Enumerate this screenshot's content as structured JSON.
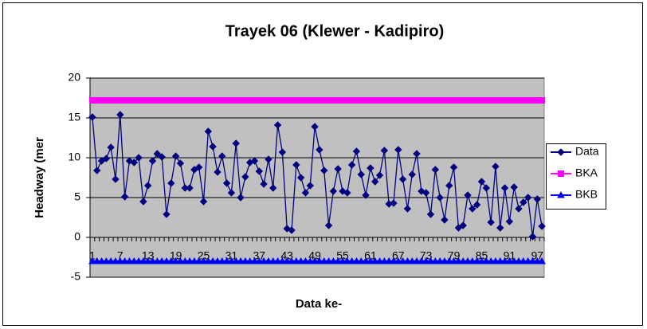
{
  "chart_data": {
    "type": "line",
    "title": "Trayek 06 (Klewer - Kadipiro)",
    "x_label": "Data ke-",
    "y_label": "Headway (mer",
    "categories": [
      "1",
      null,
      null,
      null,
      null,
      null,
      "7",
      null,
      null,
      null,
      null,
      null,
      "13",
      null,
      null,
      null,
      null,
      null,
      "19",
      null,
      null,
      null,
      null,
      null,
      "25",
      null,
      null,
      null,
      null,
      null,
      "31",
      null,
      null,
      null,
      null,
      null,
      "37",
      null,
      null,
      null,
      null,
      null,
      "43",
      null,
      null,
      null,
      null,
      null,
      "49",
      null,
      null,
      null,
      null,
      null,
      "55",
      null,
      null,
      null,
      null,
      null,
      "61",
      null,
      null,
      null,
      null,
      null,
      "67",
      null,
      null,
      null,
      null,
      null,
      "73",
      null,
      null,
      null,
      null,
      null,
      "79",
      null,
      null,
      null,
      null,
      null,
      "85",
      null,
      null,
      null,
      null,
      null,
      "91",
      null,
      null,
      null,
      null,
      null,
      "97",
      null
    ],
    "series": [
      {
        "name": "Data",
        "color": "#000080",
        "marker": "diamond",
        "values": [
          15.1,
          8.4,
          9.6,
          9.9,
          11.3,
          7.3,
          15.4,
          5.1,
          9.6,
          9.4,
          10,
          4.5,
          6.5,
          9.6,
          10.5,
          10.1,
          2.9,
          6.8,
          10.2,
          9.3,
          6.2,
          6.2,
          8.5,
          8.8,
          4.5,
          13.3,
          11.4,
          8.2,
          10.2,
          6.8,
          5.6,
          11.8,
          5,
          7.6,
          9.4,
          9.6,
          8.3,
          6.7,
          9.8,
          6.2,
          14.1,
          10.7,
          1.1,
          0.9,
          9.1,
          7.5,
          5.6,
          6.5,
          13.9,
          11,
          8.4,
          1.5,
          5.8,
          8.6,
          5.8,
          5.6,
          9.1,
          10.8,
          7.9,
          5.3,
          8.7,
          7,
          7.8,
          10.9,
          4.2,
          4.3,
          11,
          7.3,
          3.6,
          7.9,
          10.5,
          5.8,
          5.6,
          2.9,
          8.5,
          5,
          2.2,
          6.5,
          8.8,
          1.2,
          1.5,
          5.3,
          3.6,
          4.1,
          7,
          6.2,
          1.9,
          8.9,
          1.2,
          6.2,
          2,
          6.3,
          3.6,
          4.4,
          5,
          0.1,
          4.8,
          1.4
        ]
      },
      {
        "name": "BKA",
        "color": "#ff00ff",
        "marker": "square",
        "values": [
          17.2,
          17.2,
          17.2,
          17.2,
          17.2,
          17.2,
          17.2,
          17.2,
          17.2,
          17.2,
          17.2,
          17.2,
          17.2,
          17.2,
          17.2,
          17.2,
          17.2,
          17.2,
          17.2,
          17.2,
          17.2,
          17.2,
          17.2,
          17.2,
          17.2,
          17.2,
          17.2,
          17.2,
          17.2,
          17.2,
          17.2,
          17.2,
          17.2,
          17.2,
          17.2,
          17.2,
          17.2,
          17.2,
          17.2,
          17.2,
          17.2,
          17.2,
          17.2,
          17.2,
          17.2,
          17.2,
          17.2,
          17.2,
          17.2,
          17.2,
          17.2,
          17.2,
          17.2,
          17.2,
          17.2,
          17.2,
          17.2,
          17.2,
          17.2,
          17.2,
          17.2,
          17.2,
          17.2,
          17.2,
          17.2,
          17.2,
          17.2,
          17.2,
          17.2,
          17.2,
          17.2,
          17.2,
          17.2,
          17.2,
          17.2,
          17.2,
          17.2,
          17.2,
          17.2,
          17.2,
          17.2,
          17.2,
          17.2,
          17.2,
          17.2,
          17.2,
          17.2,
          17.2,
          17.2,
          17.2,
          17.2,
          17.2,
          17.2,
          17.2,
          17.2,
          17.2,
          17.2,
          17.2
        ]
      },
      {
        "name": "BKB",
        "color": "#0000ff",
        "marker": "triangle",
        "values": [
          -3,
          -3,
          -3,
          -3,
          -3,
          -3,
          -3,
          -3,
          -3,
          -3,
          -3,
          -3,
          -3,
          -3,
          -3,
          -3,
          -3,
          -3,
          -3,
          -3,
          -3,
          -3,
          -3,
          -3,
          -3,
          -3,
          -3,
          -3,
          -3,
          -3,
          -3,
          -3,
          -3,
          -3,
          -3,
          -3,
          -3,
          -3,
          -3,
          -3,
          -3,
          -3,
          -3,
          -3,
          -3,
          -3,
          -3,
          -3,
          -3,
          -3,
          -3,
          -3,
          -3,
          -3,
          -3,
          -3,
          -3,
          -3,
          -3,
          -3,
          -3,
          -3,
          -3,
          -3,
          -3,
          -3,
          -3,
          -3,
          -3,
          -3,
          -3,
          -3,
          -3,
          -3,
          -3,
          -3,
          -3,
          -3,
          -3,
          -3,
          -3,
          -3,
          -3,
          -3,
          -3,
          -3,
          -3,
          -3,
          -3,
          -3,
          -3,
          -3,
          -3,
          -3,
          -3,
          -3,
          -3,
          -3
        ]
      }
    ],
    "ylim": [
      -5,
      20
    ],
    "yticks": [
      -5,
      0,
      5,
      10,
      15,
      20
    ],
    "grid": true,
    "plot_background": "#c0c0c0",
    "legend": "right"
  }
}
